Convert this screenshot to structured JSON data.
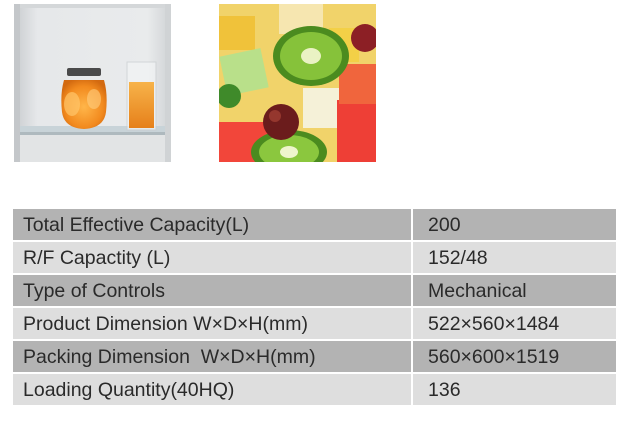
{
  "photos": {
    "fridge_alt": "Refrigerator interior with jar of peaches and glass of juice",
    "fruit_alt": "Fruit salad with kiwi, melon, pineapple and grapes"
  },
  "specs": [
    {
      "label": "Total Effective Capacity(L)",
      "value": "200"
    },
    {
      "label": "R/F Capactity (L)",
      "value": "152/48"
    },
    {
      "label": "Type of Controls",
      "value": "Mechanical"
    },
    {
      "label": "Product Dimension W×D×H(mm)",
      "value": "522×560×1484"
    },
    {
      "label": "Packing Dimension  W×D×H(mm)",
      "value": "560×600×1519"
    },
    {
      "label": "Loading Quantity(40HQ)",
      "value": "136"
    }
  ],
  "colors": {
    "row_dark": "#b3b3b3",
    "row_light": "#dedede",
    "text": "#2a2a2a"
  }
}
